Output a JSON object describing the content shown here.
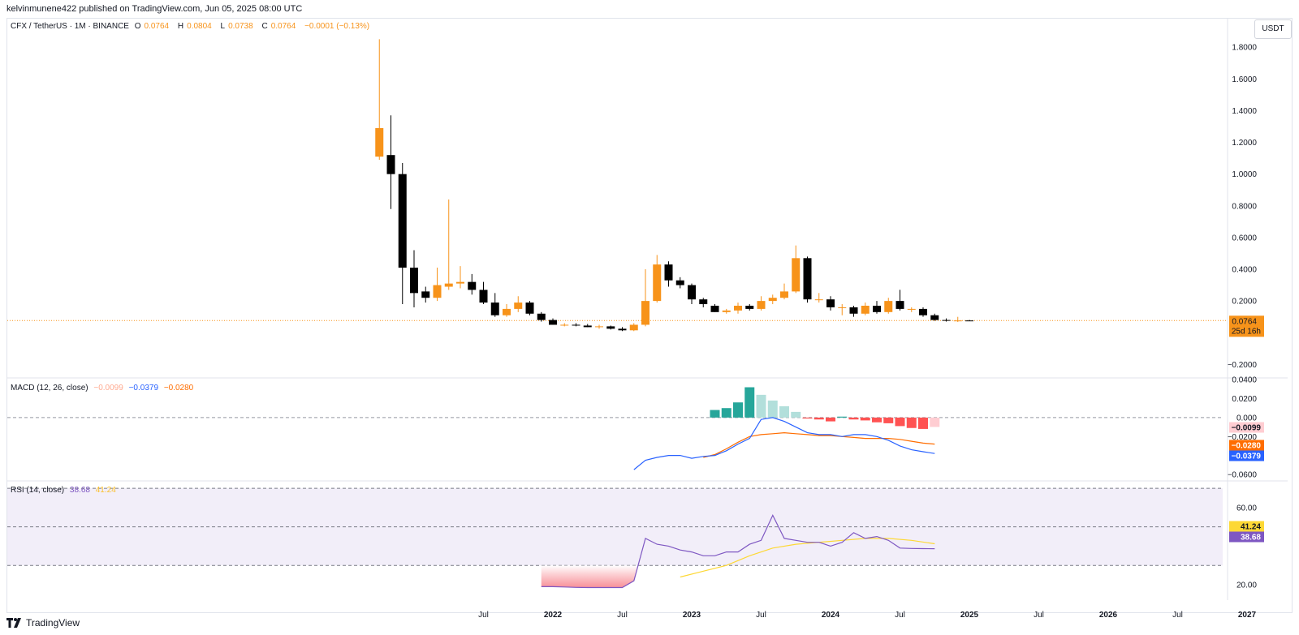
{
  "header": {
    "publish_line": "kelvinmunene422 published on TradingView.com, Jun 05, 2025 08:00 UTC"
  },
  "legend": {
    "symbol": "CFX / TetherUS · 1M · BINANCE",
    "o_label": "O",
    "o_value": "0.0764",
    "h_label": "H",
    "h_value": "0.0804",
    "l_label": "L",
    "l_value": "0.0738",
    "c_label": "C",
    "c_value": "0.0764",
    "change": "−0.0001 (−0.13%)"
  },
  "currency_button": "USDT",
  "macd_legend": {
    "title": "MACD (12, 26, close)",
    "hist": "−0.0099",
    "macd": "−0.0379",
    "signal": "−0.0280"
  },
  "rsi_legend": {
    "title": "RSI (14, close)",
    "rsi": "38.68",
    "ma": "41.24"
  },
  "footer": {
    "brand": "TradingView"
  },
  "colors": {
    "up": "#f7931a",
    "down": "#000000",
    "macd_line": "#2962ff",
    "signal_line": "#ff6d00",
    "rsi_line": "#7e57c2",
    "rsi_ma": "#fdd835",
    "hist_pos_strong": "#26a69a",
    "hist_pos_weak": "#b2dfdb",
    "hist_neg_strong": "#ff5252",
    "hist_neg_weak": "#ffcdd2"
  },
  "chart_data": [
    {
      "type": "candlestick",
      "title": "CFX / TetherUS · 1M · BINANCE",
      "ylim": [
        -0.28,
        1.98
      ],
      "y_ticks": [
        "1.8000",
        "1.6000",
        "1.4000",
        "1.2000",
        "1.0000",
        "0.8000",
        "0.6000",
        "0.4000",
        "0.2000",
        "−0.2000"
      ],
      "y_tick_values": [
        1.8,
        1.6,
        1.4,
        1.2,
        1.0,
        0.8,
        0.6,
        0.4,
        0.2,
        -0.2
      ],
      "x_ticks": [
        "Jul",
        "2022",
        "Jul",
        "2023",
        "Jul",
        "2024",
        "Jul",
        "2025",
        "Jul",
        "2026",
        "Jul",
        "2027"
      ],
      "x_tick_months": [
        6,
        12,
        18,
        24,
        30,
        36,
        42,
        48,
        54,
        60,
        66,
        72
      ],
      "last_price_label": "0.0764",
      "countdown_label": "25d 16h",
      "last_price": 0.0764,
      "candles": [
        {
          "m": -3,
          "o": 1.11,
          "h": 1.85,
          "l": 1.09,
          "c": 1.29
        },
        {
          "m": -2,
          "o": 1.12,
          "h": 1.37,
          "l": 0.78,
          "c": 1.0
        },
        {
          "m": -1,
          "o": 1.0,
          "h": 1.07,
          "l": 0.18,
          "c": 0.41
        },
        {
          "m": 0,
          "o": 0.41,
          "h": 0.52,
          "l": 0.16,
          "c": 0.25
        },
        {
          "m": 1,
          "o": 0.26,
          "h": 0.29,
          "l": 0.19,
          "c": 0.22
        },
        {
          "m": 2,
          "o": 0.22,
          "h": 0.41,
          "l": 0.2,
          "c": 0.3
        },
        {
          "m": 3,
          "o": 0.29,
          "h": 0.84,
          "l": 0.27,
          "c": 0.31
        },
        {
          "m": 4,
          "o": 0.31,
          "h": 0.42,
          "l": 0.28,
          "c": 0.32
        },
        {
          "m": 5,
          "o": 0.32,
          "h": 0.37,
          "l": 0.24,
          "c": 0.27
        },
        {
          "m": 6,
          "o": 0.27,
          "h": 0.32,
          "l": 0.18,
          "c": 0.19
        },
        {
          "m": 7,
          "o": 0.19,
          "h": 0.25,
          "l": 0.1,
          "c": 0.11
        },
        {
          "m": 8,
          "o": 0.11,
          "h": 0.18,
          "l": 0.1,
          "c": 0.15
        },
        {
          "m": 9,
          "o": 0.15,
          "h": 0.23,
          "l": 0.13,
          "c": 0.19
        },
        {
          "m": 10,
          "o": 0.19,
          "h": 0.2,
          "l": 0.11,
          "c": 0.12
        },
        {
          "m": 11,
          "o": 0.12,
          "h": 0.13,
          "l": 0.07,
          "c": 0.08
        },
        {
          "m": 12,
          "o": 0.08,
          "h": 0.09,
          "l": 0.05,
          "c": 0.05
        },
        {
          "m": 13,
          "o": 0.05,
          "h": 0.06,
          "l": 0.04,
          "c": 0.05
        },
        {
          "m": 14,
          "o": 0.05,
          "h": 0.06,
          "l": 0.04,
          "c": 0.045
        },
        {
          "m": 15,
          "o": 0.045,
          "h": 0.055,
          "l": 0.035,
          "c": 0.035
        },
        {
          "m": 16,
          "o": 0.035,
          "h": 0.05,
          "l": 0.025,
          "c": 0.04
        },
        {
          "m": 17,
          "o": 0.04,
          "h": 0.045,
          "l": 0.02,
          "c": 0.025
        },
        {
          "m": 18,
          "o": 0.025,
          "h": 0.035,
          "l": 0.01,
          "c": 0.015
        },
        {
          "m": 19,
          "o": 0.015,
          "h": 0.06,
          "l": 0.01,
          "c": 0.05
        },
        {
          "m": 20,
          "o": 0.05,
          "h": 0.4,
          "l": 0.04,
          "c": 0.2
        },
        {
          "m": 21,
          "o": 0.2,
          "h": 0.49,
          "l": 0.19,
          "c": 0.43
        },
        {
          "m": 22,
          "o": 0.43,
          "h": 0.45,
          "l": 0.29,
          "c": 0.33
        },
        {
          "m": 23,
          "o": 0.33,
          "h": 0.35,
          "l": 0.28,
          "c": 0.3
        },
        {
          "m": 24,
          "o": 0.3,
          "h": 0.31,
          "l": 0.18,
          "c": 0.21
        },
        {
          "m": 25,
          "o": 0.21,
          "h": 0.22,
          "l": 0.16,
          "c": 0.18
        },
        {
          "m": 26,
          "o": 0.17,
          "h": 0.18,
          "l": 0.13,
          "c": 0.13
        },
        {
          "m": 27,
          "o": 0.13,
          "h": 0.15,
          "l": 0.12,
          "c": 0.14
        },
        {
          "m": 28,
          "o": 0.14,
          "h": 0.19,
          "l": 0.12,
          "c": 0.17
        },
        {
          "m": 29,
          "o": 0.17,
          "h": 0.18,
          "l": 0.14,
          "c": 0.15
        },
        {
          "m": 30,
          "o": 0.15,
          "h": 0.23,
          "l": 0.14,
          "c": 0.2
        },
        {
          "m": 31,
          "o": 0.2,
          "h": 0.24,
          "l": 0.18,
          "c": 0.22
        },
        {
          "m": 32,
          "o": 0.22,
          "h": 0.31,
          "l": 0.21,
          "c": 0.26
        },
        {
          "m": 33,
          "o": 0.26,
          "h": 0.55,
          "l": 0.25,
          "c": 0.47
        },
        {
          "m": 34,
          "o": 0.47,
          "h": 0.48,
          "l": 0.19,
          "c": 0.21
        },
        {
          "m": 35,
          "o": 0.21,
          "h": 0.25,
          "l": 0.19,
          "c": 0.21
        },
        {
          "m": 36,
          "o": 0.21,
          "h": 0.23,
          "l": 0.14,
          "c": 0.16
        },
        {
          "m": 37,
          "o": 0.16,
          "h": 0.18,
          "l": 0.11,
          "c": 0.16
        },
        {
          "m": 38,
          "o": 0.16,
          "h": 0.17,
          "l": 0.1,
          "c": 0.12
        },
        {
          "m": 39,
          "o": 0.12,
          "h": 0.19,
          "l": 0.11,
          "c": 0.17
        },
        {
          "m": 40,
          "o": 0.17,
          "h": 0.2,
          "l": 0.12,
          "c": 0.13
        },
        {
          "m": 41,
          "o": 0.13,
          "h": 0.22,
          "l": 0.12,
          "c": 0.2
        },
        {
          "m": 42,
          "o": 0.2,
          "h": 0.27,
          "l": 0.14,
          "c": 0.15
        },
        {
          "m": 43,
          "o": 0.15,
          "h": 0.16,
          "l": 0.13,
          "c": 0.15
        },
        {
          "m": 44,
          "o": 0.15,
          "h": 0.16,
          "l": 0.1,
          "c": 0.11
        },
        {
          "m": 45,
          "o": 0.11,
          "h": 0.12,
          "l": 0.075,
          "c": 0.08
        },
        {
          "m": 46,
          "o": 0.08,
          "h": 0.09,
          "l": 0.07,
          "c": 0.075
        },
        {
          "m": 47,
          "o": 0.076,
          "h": 0.1,
          "l": 0.068,
          "c": 0.077
        },
        {
          "m": 48,
          "o": 0.077,
          "h": 0.0804,
          "l": 0.0738,
          "c": 0.0764
        }
      ]
    },
    {
      "type": "bar+line",
      "title": "MACD (12, 26, close)",
      "ylim": [
        -0.066,
        0.041
      ],
      "y_ticks": [
        "0.0400",
        "0.0200",
        "0.000",
        "−0.0200",
        "−0.0600"
      ],
      "y_tick_values": [
        0.04,
        0.02,
        0,
        -0.02,
        -0.06
      ],
      "value_labels": {
        "histogram": "−0.0099",
        "signal": "−0.0280",
        "macd": "−0.0379"
      },
      "histogram": [
        {
          "m": 26,
          "v": 0.008
        },
        {
          "m": 27,
          "v": 0.01
        },
        {
          "m": 28,
          "v": 0.016
        },
        {
          "m": 29,
          "v": 0.032
        },
        {
          "m": 30,
          "v": 0.024
        },
        {
          "m": 31,
          "v": 0.018
        },
        {
          "m": 32,
          "v": 0.012
        },
        {
          "m": 33,
          "v": 0.006
        },
        {
          "m": 34,
          "v": -0.001
        },
        {
          "m": 35,
          "v": -0.002
        },
        {
          "m": 36,
          "v": -0.004
        },
        {
          "m": 37,
          "v": 0.001
        },
        {
          "m": 38,
          "v": -0.002
        },
        {
          "m": 39,
          "v": -0.003
        },
        {
          "m": 40,
          "v": -0.005
        },
        {
          "m": 41,
          "v": -0.006
        },
        {
          "m": 42,
          "v": -0.009
        },
        {
          "m": 43,
          "v": -0.011
        },
        {
          "m": 44,
          "v": -0.012
        },
        {
          "m": 45,
          "v": -0.0099
        }
      ],
      "macd": [
        {
          "m": 19,
          "v": -0.055
        },
        {
          "m": 20,
          "v": -0.045
        },
        {
          "m": 21,
          "v": -0.042
        },
        {
          "m": 22,
          "v": -0.04
        },
        {
          "m": 23,
          "v": -0.04
        },
        {
          "m": 24,
          "v": -0.043
        },
        {
          "m": 25,
          "v": -0.041
        },
        {
          "m": 26,
          "v": -0.04
        },
        {
          "m": 27,
          "v": -0.035
        },
        {
          "m": 28,
          "v": -0.028
        },
        {
          "m": 29,
          "v": -0.022
        },
        {
          "m": 30,
          "v": -0.002
        },
        {
          "m": 31,
          "v": 0
        },
        {
          "m": 32,
          "v": -0.004
        },
        {
          "m": 33,
          "v": -0.01
        },
        {
          "m": 34,
          "v": -0.016
        },
        {
          "m": 35,
          "v": -0.018
        },
        {
          "m": 36,
          "v": -0.018
        },
        {
          "m": 37,
          "v": -0.02
        },
        {
          "m": 38,
          "v": -0.018
        },
        {
          "m": 39,
          "v": -0.018
        },
        {
          "m": 40,
          "v": -0.02
        },
        {
          "m": 41,
          "v": -0.024
        },
        {
          "m": 42,
          "v": -0.03
        },
        {
          "m": 43,
          "v": -0.034
        },
        {
          "m": 44,
          "v": -0.036
        },
        {
          "m": 45,
          "v": -0.0379
        }
      ],
      "signal": [
        {
          "m": 25,
          "v": -0.042
        },
        {
          "m": 26,
          "v": -0.039
        },
        {
          "m": 27,
          "v": -0.033
        },
        {
          "m": 28,
          "v": -0.026
        },
        {
          "m": 29,
          "v": -0.02
        },
        {
          "m": 30,
          "v": -0.018
        },
        {
          "m": 31,
          "v": -0.017
        },
        {
          "m": 32,
          "v": -0.016
        },
        {
          "m": 33,
          "v": -0.017
        },
        {
          "m": 34,
          "v": -0.018
        },
        {
          "m": 35,
          "v": -0.019
        },
        {
          "m": 36,
          "v": -0.019
        },
        {
          "m": 37,
          "v": -0.02
        },
        {
          "m": 38,
          "v": -0.021
        },
        {
          "m": 39,
          "v": -0.022
        },
        {
          "m": 40,
          "v": -0.022
        },
        {
          "m": 41,
          "v": -0.022
        },
        {
          "m": 42,
          "v": -0.023
        },
        {
          "m": 43,
          "v": -0.025
        },
        {
          "m": 44,
          "v": -0.027
        },
        {
          "m": 45,
          "v": -0.028
        }
      ]
    },
    {
      "type": "line",
      "title": "RSI (14, close)",
      "ylim": [
        12,
        73
      ],
      "y_ticks": [
        "60.00",
        "20.00"
      ],
      "y_tick_values": [
        60,
        20
      ],
      "band": [
        30,
        70
      ],
      "midline": 50,
      "value_labels": {
        "ma": "41.24",
        "rsi": "38.68"
      },
      "rsi": [
        {
          "m": 11,
          "v": 19
        },
        {
          "m": 12,
          "v": 19
        },
        {
          "m": 13,
          "v": 18.8
        },
        {
          "m": 14,
          "v": 18.6
        },
        {
          "m": 15,
          "v": 18.5
        },
        {
          "m": 16,
          "v": 18.5
        },
        {
          "m": 17,
          "v": 18.5
        },
        {
          "m": 18,
          "v": 18.5
        },
        {
          "m": 19,
          "v": 22
        },
        {
          "m": 20,
          "v": 44
        },
        {
          "m": 21,
          "v": 41
        },
        {
          "m": 22,
          "v": 40
        },
        {
          "m": 23,
          "v": 38
        },
        {
          "m": 24,
          "v": 37
        },
        {
          "m": 25,
          "v": 35
        },
        {
          "m": 26,
          "v": 35
        },
        {
          "m": 27,
          "v": 37
        },
        {
          "m": 28,
          "v": 37
        },
        {
          "m": 29,
          "v": 41
        },
        {
          "m": 30,
          "v": 43
        },
        {
          "m": 31,
          "v": 56
        },
        {
          "m": 32,
          "v": 44
        },
        {
          "m": 33,
          "v": 43
        },
        {
          "m": 34,
          "v": 42
        },
        {
          "m": 35,
          "v": 42
        },
        {
          "m": 36,
          "v": 40
        },
        {
          "m": 37,
          "v": 42
        },
        {
          "m": 38,
          "v": 47
        },
        {
          "m": 39,
          "v": 44
        },
        {
          "m": 40,
          "v": 45
        },
        {
          "m": 41,
          "v": 43
        },
        {
          "m": 42,
          "v": 39
        },
        {
          "m": 43,
          "v": 38.8
        },
        {
          "m": 44,
          "v": 38.7
        },
        {
          "m": 45,
          "v": 38.68
        }
      ],
      "rsi_ma": [
        {
          "m": 23,
          "v": 24
        },
        {
          "m": 25,
          "v": 27
        },
        {
          "m": 27,
          "v": 30
        },
        {
          "m": 29,
          "v": 35
        },
        {
          "m": 31,
          "v": 39
        },
        {
          "m": 33,
          "v": 41
        },
        {
          "m": 35,
          "v": 42
        },
        {
          "m": 37,
          "v": 43
        },
        {
          "m": 39,
          "v": 44
        },
        {
          "m": 41,
          "v": 44
        },
        {
          "m": 43,
          "v": 43
        },
        {
          "m": 45,
          "v": 41.24
        }
      ]
    }
  ]
}
